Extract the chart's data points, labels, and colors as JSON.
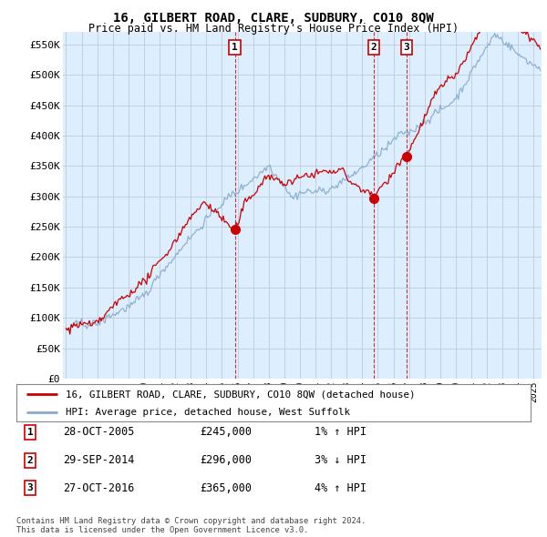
{
  "title": "16, GILBERT ROAD, CLARE, SUDBURY, CO10 8QW",
  "subtitle": "Price paid vs. HM Land Registry's House Price Index (HPI)",
  "ylabel_ticks": [
    "£0",
    "£50K",
    "£100K",
    "£150K",
    "£200K",
    "£250K",
    "£300K",
    "£350K",
    "£400K",
    "£450K",
    "£500K",
    "£550K"
  ],
  "ylim": [
    0,
    570000
  ],
  "yticks": [
    0,
    50000,
    100000,
    150000,
    200000,
    250000,
    300000,
    350000,
    400000,
    450000,
    500000,
    550000
  ],
  "xmin": 1994.8,
  "xmax": 2025.5,
  "sale_dates": [
    2005.83,
    2014.75,
    2016.83
  ],
  "sale_prices": [
    245000,
    296000,
    365000
  ],
  "sale_labels": [
    "1",
    "2",
    "3"
  ],
  "legend_line1": "16, GILBERT ROAD, CLARE, SUDBURY, CO10 8QW (detached house)",
  "legend_line2": "HPI: Average price, detached house, West Suffolk",
  "table_data": [
    [
      "1",
      "28-OCT-2005",
      "£245,000",
      "1% ↑ HPI"
    ],
    [
      "2",
      "29-SEP-2014",
      "£296,000",
      "3% ↓ HPI"
    ],
    [
      "3",
      "27-OCT-2016",
      "£365,000",
      "4% ↑ HPI"
    ]
  ],
  "footnote": "Contains HM Land Registry data © Crown copyright and database right 2024.\nThis data is licensed under the Open Government Licence v3.0.",
  "red_color": "#cc0000",
  "blue_color": "#88aacc",
  "chart_bg": "#ddeeff",
  "grid_color": "#bbccdd",
  "bg_color": "#ffffff"
}
